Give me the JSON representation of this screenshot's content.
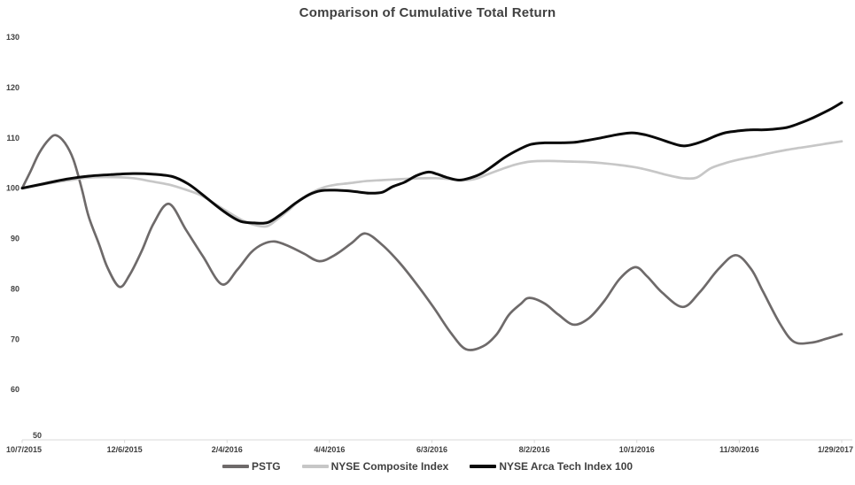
{
  "page": {
    "background": "#ffffff"
  },
  "chart_data": {
    "type": "line",
    "title": "Comparison of Cumulative Total Return",
    "title_color": "#404040",
    "grid": "off",
    "legend_position": "bottom-center",
    "x_axis": {
      "tick_labels": [
        "10/7/2015",
        "12/6/2015",
        "2/4/2016",
        "4/4/2016",
        "6/3/2016",
        "8/2/2016",
        "10/1/2016",
        "11/30/2016",
        "1/29/2017"
      ],
      "tick_interval_days": 60,
      "domain_days": [
        0,
        480
      ],
      "axis_line_color": "#d9d9d9",
      "label_color": "#404040"
    },
    "y_axis": {
      "ticks": [
        130,
        120,
        110,
        100,
        90,
        80,
        70,
        60,
        50
      ],
      "lim": [
        50,
        130
      ],
      "label_color": "#404040"
    },
    "series": [
      {
        "name": "PSTG",
        "color": "#6e6a6a",
        "stroke_width": 2.7,
        "smoothing": "spline",
        "points_day_value": [
          [
            0,
            100
          ],
          [
            5,
            103.4
          ],
          [
            10,
            107
          ],
          [
            16,
            109.8
          ],
          [
            20,
            110.5
          ],
          [
            25,
            109
          ],
          [
            30,
            105.7
          ],
          [
            35,
            99.8
          ],
          [
            39,
            94.3
          ],
          [
            45,
            88.9
          ],
          [
            50,
            84.2
          ],
          [
            57,
            80.4
          ],
          [
            63,
            82.8
          ],
          [
            70,
            87.5
          ],
          [
            77,
            93
          ],
          [
            86,
            96.9
          ],
          [
            96,
            91.7
          ],
          [
            106,
            86.4
          ],
          [
            117,
            80.9
          ],
          [
            126,
            83.8
          ],
          [
            134,
            87.2
          ],
          [
            141,
            88.9
          ],
          [
            148,
            89.4
          ],
          [
            156,
            88.5
          ],
          [
            165,
            87
          ],
          [
            174,
            85.5
          ],
          [
            183,
            86.7
          ],
          [
            193,
            89.1
          ],
          [
            201,
            91
          ],
          [
            211,
            88.7
          ],
          [
            221,
            85.2
          ],
          [
            230,
            81.4
          ],
          [
            241,
            76.3
          ],
          [
            251,
            71.3
          ],
          [
            260,
            68
          ],
          [
            270,
            68.6
          ],
          [
            278,
            71
          ],
          [
            285,
            74.8
          ],
          [
            292,
            77
          ],
          [
            297,
            78.2
          ],
          [
            306,
            77.1
          ],
          [
            314,
            74.9
          ],
          [
            323,
            72.9
          ],
          [
            332,
            74.2
          ],
          [
            341,
            77.6
          ],
          [
            350,
            82
          ],
          [
            359,
            84.3
          ],
          [
            366,
            82.5
          ],
          [
            375,
            79.2
          ],
          [
            387,
            76.4
          ],
          [
            397,
            79.4
          ],
          [
            408,
            84
          ],
          [
            418,
            86.7
          ],
          [
            427,
            83.9
          ],
          [
            434,
            79.4
          ],
          [
            444,
            73
          ],
          [
            452,
            69.5
          ],
          [
            462,
            69.3
          ],
          [
            471,
            70.1
          ],
          [
            480,
            71
          ]
        ]
      },
      {
        "name": "NYSE Composite Index",
        "color": "#c7c7c7",
        "stroke_width": 2.7,
        "smoothing": "spline",
        "points_day_value": [
          [
            0,
            100
          ],
          [
            13,
            100.8
          ],
          [
            26,
            101.5
          ],
          [
            39,
            102.1
          ],
          [
            52,
            102.2
          ],
          [
            65,
            102
          ],
          [
            75,
            101.4
          ],
          [
            86,
            100.7
          ],
          [
            95,
            99.8
          ],
          [
            104,
            98.7
          ],
          [
            112,
            97.1
          ],
          [
            120,
            95.4
          ],
          [
            128,
            93.8
          ],
          [
            135,
            92.8
          ],
          [
            143,
            92.4
          ],
          [
            149,
            93.7
          ],
          [
            156,
            95.6
          ],
          [
            163,
            97.7
          ],
          [
            170,
            99.2
          ],
          [
            177,
            100.2
          ],
          [
            184,
            100.7
          ],
          [
            192,
            101
          ],
          [
            201,
            101.4
          ],
          [
            211,
            101.6
          ],
          [
            222,
            101.8
          ],
          [
            232,
            101.95
          ],
          [
            242,
            102
          ],
          [
            252,
            101.75
          ],
          [
            258,
            101.55
          ],
          [
            266,
            101.9
          ],
          [
            273,
            102.8
          ],
          [
            281,
            103.8
          ],
          [
            289,
            104.7
          ],
          [
            298,
            105.3
          ],
          [
            309,
            105.4
          ],
          [
            320,
            105.3
          ],
          [
            330,
            105.2
          ],
          [
            339,
            105
          ],
          [
            350,
            104.6
          ],
          [
            360,
            104.1
          ],
          [
            369,
            103.4
          ],
          [
            378,
            102.6
          ],
          [
            387,
            102
          ],
          [
            395,
            102.1
          ],
          [
            403,
            103.9
          ],
          [
            411,
            104.9
          ],
          [
            420,
            105.7
          ],
          [
            429,
            106.3
          ],
          [
            437,
            106.9
          ],
          [
            446,
            107.5
          ],
          [
            455,
            108
          ],
          [
            463,
            108.4
          ],
          [
            472,
            108.9
          ],
          [
            480,
            109.3
          ]
        ]
      },
      {
        "name": "NYSE Arca Tech Index 100",
        "color": "#0a0a0a",
        "stroke_width": 3,
        "smoothing": "spline",
        "points_day_value": [
          [
            0,
            100
          ],
          [
            13,
            100.9
          ],
          [
            26,
            101.8
          ],
          [
            39,
            102.4
          ],
          [
            52,
            102.7
          ],
          [
            65,
            102.9
          ],
          [
            76,
            102.8
          ],
          [
            88,
            102.3
          ],
          [
            97,
            100.9
          ],
          [
            105,
            98.9
          ],
          [
            113,
            96.7
          ],
          [
            121,
            94.7
          ],
          [
            128,
            93.4
          ],
          [
            136,
            93.1
          ],
          [
            144,
            93.2
          ],
          [
            152,
            94.9
          ],
          [
            160,
            97
          ],
          [
            168,
            98.7
          ],
          [
            175,
            99.5
          ],
          [
            183,
            99.6
          ],
          [
            190,
            99.5
          ],
          [
            198,
            99.2
          ],
          [
            204,
            99
          ],
          [
            211,
            99.2
          ],
          [
            217,
            100.3
          ],
          [
            224,
            101.2
          ],
          [
            231,
            102.5
          ],
          [
            238,
            103.2
          ],
          [
            243,
            102.8
          ],
          [
            249,
            102.1
          ],
          [
            256,
            101.6
          ],
          [
            263,
            102.1
          ],
          [
            269,
            102.9
          ],
          [
            276,
            104.5
          ],
          [
            283,
            106.2
          ],
          [
            291,
            107.7
          ],
          [
            298,
            108.7
          ],
          [
            306,
            109
          ],
          [
            314,
            109
          ],
          [
            323,
            109.1
          ],
          [
            331,
            109.5
          ],
          [
            339,
            110
          ],
          [
            348,
            110.6
          ],
          [
            357,
            111
          ],
          [
            365,
            110.6
          ],
          [
            374,
            109.7
          ],
          [
            380,
            109
          ],
          [
            387,
            108.4
          ],
          [
            393,
            108.7
          ],
          [
            400,
            109.5
          ],
          [
            407,
            110.5
          ],
          [
            413,
            111.1
          ],
          [
            420,
            111.4
          ],
          [
            426,
            111.6
          ],
          [
            433,
            111.6
          ],
          [
            439,
            111.7
          ],
          [
            447,
            112
          ],
          [
            453,
            112.6
          ],
          [
            460,
            113.5
          ],
          [
            467,
            114.6
          ],
          [
            474,
            115.8
          ],
          [
            480,
            117
          ]
        ]
      }
    ]
  }
}
